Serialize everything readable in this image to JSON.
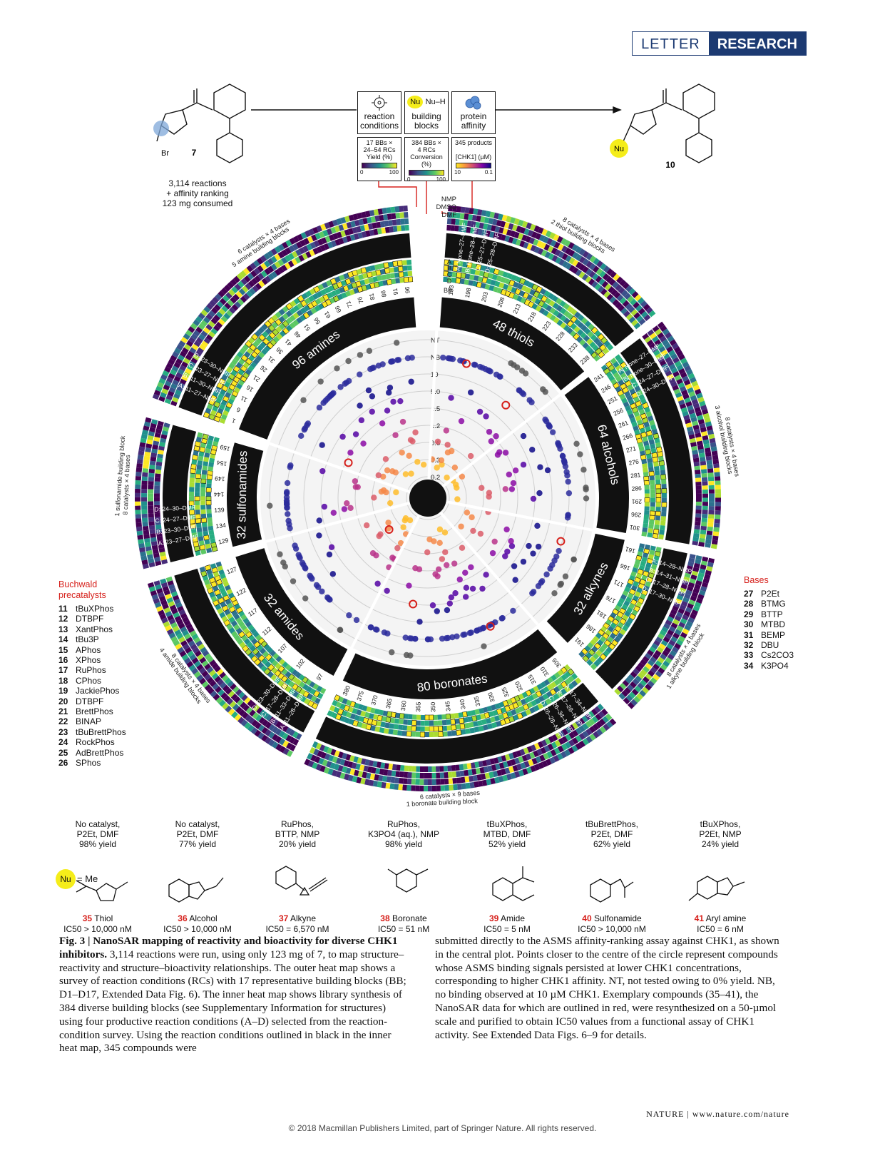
{
  "header": {
    "letter": "LETTER",
    "research": "RESEARCH"
  },
  "scheme": {
    "start_compound": "7",
    "product_compound": "10",
    "summary": [
      "3,114 reactions",
      "+ affinity ranking",
      "123 mg consumed"
    ],
    "nu_label": "Nu",
    "nu_h": "Nu–H",
    "boxes": [
      {
        "title": [
          "reaction",
          "conditions"
        ],
        "sub": [
          "17 BBs ×",
          "24–54 RCs",
          "Yield (%)"
        ],
        "scale": [
          "0",
          "100"
        ],
        "cmap": "viridis"
      },
      {
        "title": [
          "building",
          "blocks"
        ],
        "sub": [
          "384 BBs ×",
          "4 RCs",
          "Conversion (%)"
        ],
        "scale": [
          "0",
          "100"
        ],
        "cmap": "viridis"
      },
      {
        "title": [
          "protein",
          "affinity"
        ],
        "sub": [
          "345 products",
          "",
          "[CHK1] (µM)"
        ],
        "scale": [
          "10",
          "0.1"
        ],
        "cmap": "plasma"
      }
    ]
  },
  "chart_data": {
    "type": "circular-heatmap-scatter",
    "center_axis": [
      "NT",
      "NB",
      "10",
      "5.0",
      "2.5",
      "1.2",
      "0.6",
      "0.3",
      "0.2"
    ],
    "solvent_labels": [
      "NMP",
      "DMSO",
      "DMF"
    ],
    "sectors": [
      {
        "name": "48 thiols",
        "ticks": [
          "193",
          "198",
          "203",
          "208",
          "213",
          "218",
          "223",
          "228",
          "233",
          "238"
        ],
        "rc": [
          "A: None–27–DMF",
          "B: None–28–DMF",
          "C: 25–27–DMF",
          "D: 25–28–DMF"
        ],
        "outer": [
          "2 thiol building blocks",
          "8 catalysts × 4 bases"
        ]
      },
      {
        "name": "64 alcohols",
        "ticks": [
          "241",
          "246",
          "251",
          "256",
          "261",
          "266",
          "271",
          "276",
          "281",
          "286",
          "291",
          "296",
          "301"
        ],
        "rc": [
          "A: None–27–DMF",
          "B: None–30–DMF",
          "C: 24–27–DMF",
          "D: 24–30–DMF"
        ],
        "outer": [
          "3 alcohol building blocks",
          "8 catalysts × 4 bases"
        ]
      },
      {
        "name": "32 alkynes",
        "ticks": [
          "161",
          "166",
          "171",
          "176",
          "181",
          "186",
          "191"
        ],
        "rc": [
          "A: 14–28–NMP",
          "B: 14–31–NMP",
          "C: 17–28–NMP",
          "D: 17–30–NMP"
        ],
        "outer": [
          "8 catalysts × 4 bases",
          "1 alkyne building block"
        ]
      },
      {
        "name": "80 boronates",
        "ticks": [
          "305",
          "310",
          "315",
          "320",
          "325",
          "330",
          "335",
          "340",
          "345",
          "350",
          "355",
          "360",
          "365",
          "370",
          "375",
          "380"
        ],
        "rc": [
          "A: 17–34–NMP",
          "B: 17–28–NMP",
          "C: 26–34–NMP",
          "D: 26–28–NMP"
        ],
        "outer": [
          "6 catalysts × 9 bases",
          "1 boronate building block"
        ]
      },
      {
        "name": "32 amides",
        "ticks": [
          "97",
          "102",
          "107",
          "112",
          "117",
          "122",
          "127"
        ],
        "rc": [
          "A: 11–28–DMF",
          "B: 11–33–DMF",
          "C: 17–28–DMF",
          "D: 23–30–DMF"
        ],
        "outer": [
          "8 catalysts × 4 bases",
          "4 amide building blocks"
        ]
      },
      {
        "name": "32 sulfonamides",
        "ticks": [
          "129",
          "134",
          "139",
          "144",
          "149",
          "154",
          "159"
        ],
        "rc": [
          "A: 23–27–DMF",
          "B: 23–30–DMF",
          "C: 24–27–DMF",
          "D: 24–30–DMF"
        ],
        "outer": [
          "8 catalysts × 4 bases",
          "1 sulfonamide building block"
        ]
      },
      {
        "name": "96 amines",
        "ticks": [
          "1",
          "6",
          "11",
          "16",
          "21",
          "26",
          "31",
          "36",
          "41",
          "46",
          "51",
          "56",
          "61",
          "66",
          "71",
          "76",
          "81",
          "86",
          "91",
          "96"
        ],
        "rc": [
          "A: 11–27–NMP",
          "B: 11–30–NMP",
          "C: 23–27–NMP",
          "D: 23–30–NMP"
        ],
        "outer": [
          "5 amine building blocks",
          "6 catalysts × 4 bases"
        ]
      }
    ],
    "rc_letters": [
      "A",
      "B",
      "C",
      "D"
    ],
    "bb_label": "BB"
  },
  "precatalysts": {
    "title": [
      "Buchwald",
      "precatalysts"
    ],
    "items": [
      {
        "num": "11",
        "name": "tBuXPhos"
      },
      {
        "num": "12",
        "name": "DTBPF"
      },
      {
        "num": "13",
        "name": "XantPhos"
      },
      {
        "num": "14",
        "name": "tBu3P"
      },
      {
        "num": "15",
        "name": "APhos"
      },
      {
        "num": "16",
        "name": "XPhos"
      },
      {
        "num": "17",
        "name": "RuPhos"
      },
      {
        "num": "18",
        "name": "CPhos"
      },
      {
        "num": "19",
        "name": "JackiePhos"
      },
      {
        "num": "20",
        "name": "DTBPF"
      },
      {
        "num": "21",
        "name": "BrettPhos"
      },
      {
        "num": "22",
        "name": "BINAP"
      },
      {
        "num": "23",
        "name": "tBuBrettPhos"
      },
      {
        "num": "24",
        "name": "RockPhos"
      },
      {
        "num": "25",
        "name": "AdBrettPhos"
      },
      {
        "num": "26",
        "name": "SPhos"
      }
    ]
  },
  "bases": {
    "title": "Bases",
    "items": [
      {
        "num": "27",
        "name": "P2Et"
      },
      {
        "num": "28",
        "name": "BTMG"
      },
      {
        "num": "29",
        "name": "BTTP"
      },
      {
        "num": "30",
        "name": "MTBD"
      },
      {
        "num": "31",
        "name": "BEMP"
      },
      {
        "num": "32",
        "name": "DBU"
      },
      {
        "num": "33",
        "name": "Cs2CO3"
      },
      {
        "num": "34",
        "name": "K3PO4"
      }
    ]
  },
  "examples": [
    {
      "cond": [
        "No catalyst,",
        "P2Et, DMF",
        "98% yield"
      ],
      "num": "35",
      "label": "Thiol",
      "ic50": "IC50 > 10,000 nM"
    },
    {
      "cond": [
        "No catalyst,",
        "P2Et, DMF",
        "77% yield"
      ],
      "num": "36",
      "label": "Alcohol",
      "ic50": "IC50 > 10,000 nM"
    },
    {
      "cond": [
        "RuPhos,",
        "BTTP, NMP",
        "20% yield"
      ],
      "num": "37",
      "label": "Alkyne",
      "ic50": "IC50 = 6,570 nM"
    },
    {
      "cond": [
        "RuPhos,",
        "K3PO4 (aq.), NMP",
        "98% yield"
      ],
      "num": "38",
      "label": "Boronate",
      "ic50": "IC50 = 51 nM"
    },
    {
      "cond": [
        "tBuXPhos,",
        "MTBD, DMF",
        "52% yield"
      ],
      "num": "39",
      "label": "Amide",
      "ic50": "IC50 = 5 nM"
    },
    {
      "cond": [
        "tBuBrettPhos,",
        "P2Et, DMF",
        "62% yield"
      ],
      "num": "40",
      "label": "Sulfonamide",
      "ic50": "IC50 > 10,000 nM"
    },
    {
      "cond": [
        "tBuXPhos,",
        "P2Et, NMP",
        "24% yield"
      ],
      "num": "41",
      "label": "Aryl amine",
      "ic50": "IC50 = 6 nM"
    }
  ],
  "nu_eq": "= Me",
  "caption": {
    "title": "Fig. 3 | NanoSAR mapping of reactivity and bioactivity for diverse CHK1 inhibitors.",
    "left": " 3,114 reactions were run, using only 123 mg of 7, to map structure–reactivity and structure–bioactivity relationships. The outer heat map shows a survey of reaction conditions (RCs) with 17 representative building blocks (BB; D1–D17, Extended Data Fig. 6). The inner heat map shows library synthesis of 384 diverse building blocks (see Supplementary Information for structures) using four productive reaction conditions (A–D) selected from the reaction-condition survey. Using the reaction conditions outlined in black in the inner heat map, 345 compounds were",
    "right": "submitted directly to the ASMS affinity-ranking assay against CHK1, as shown in the central plot. Points closer to the centre of the circle represent compounds whose ASMS binding signals persisted at lower CHK1 concentrations, corresponding to higher CHK1 affinity. NT, not tested owing to 0% yield. NB, no binding observed at 10 µM CHK1. Exemplary compounds (35–41), the NanoSAR data for which are outlined in red, were resynthesized on a 50-µmol scale and purified to obtain IC50 values from a functional assay of CHK1 activity. See Extended Data Figs. 6–9 for details."
  },
  "footer": {
    "journal": "NATURE | www.nature.com/nature",
    "copyright": "© 2018 Macmillan Publishers Limited, part of Springer Nature. All rights reserved."
  },
  "colors": {
    "accent": "#d6201b",
    "brand": "#1c3a72",
    "highlight": "#f5ed1a"
  }
}
